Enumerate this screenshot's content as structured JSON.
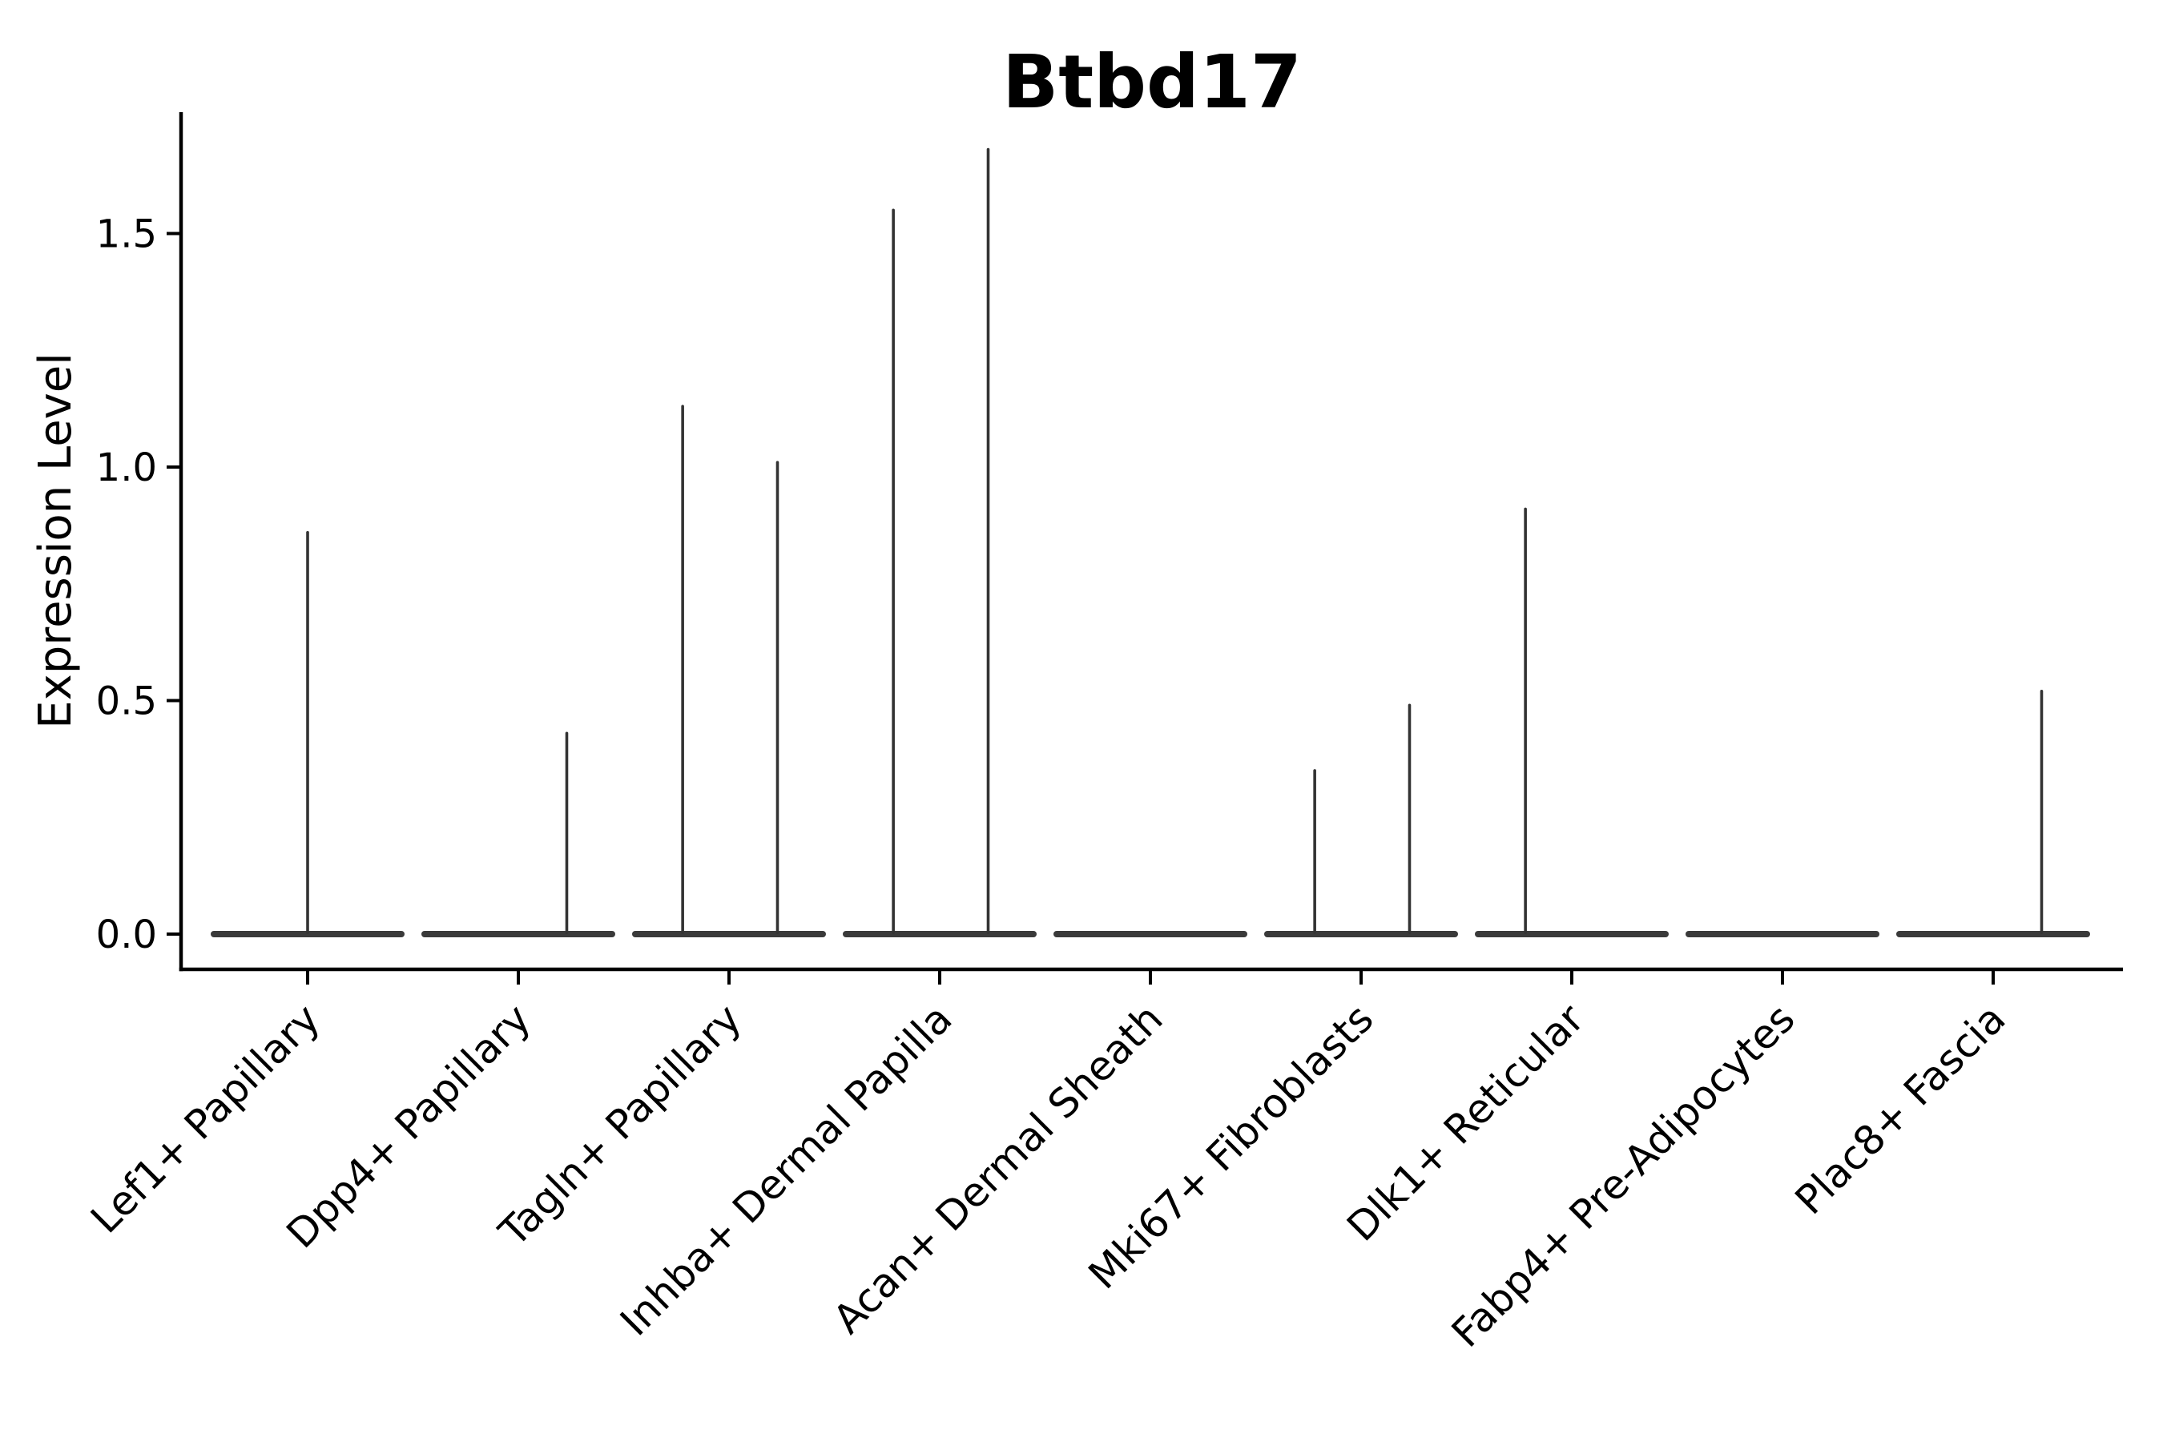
{
  "chart_data": {
    "type": "violin",
    "title": "Btbd17",
    "ylabel": "Expression Level",
    "xlabel": "",
    "ylim": [
      -0.08,
      1.76
    ],
    "yticks": [
      0.0,
      0.5,
      1.0,
      1.5
    ],
    "ytick_labels": [
      "0.0",
      "0.5",
      "1.0",
      "1.5"
    ],
    "grid": false,
    "legend": "none",
    "x_tick_rotation_deg": 45,
    "categories": [
      "Lef1+ Papillary",
      "Dpp4+ Papillary",
      "Tagln+ Papillary",
      "Inhba+ Dermal Papilla",
      "Acan+ Dermal Sheath",
      "Mki67+ Fibroblasts",
      "Dlk1+ Reticular",
      "Fabp4+ Pre-Adipocytes",
      "Plac8+ Fascia"
    ],
    "violins": [
      {
        "category": "Lef1+ Papillary",
        "baseline_value": 0.0,
        "spikes": [
          {
            "offset": 0.0,
            "max": 0.86
          }
        ]
      },
      {
        "category": "Dpp4+ Papillary",
        "baseline_value": 0.0,
        "spikes": [
          {
            "offset": 0.23,
            "max": 0.43
          }
        ]
      },
      {
        "category": "Tagln+ Papillary",
        "baseline_value": 0.0,
        "spikes": [
          {
            "offset": -0.22,
            "max": 1.13
          },
          {
            "offset": 0.23,
            "max": 1.01
          }
        ]
      },
      {
        "category": "Inhba+ Dermal Papilla",
        "baseline_value": 0.0,
        "spikes": [
          {
            "offset": -0.22,
            "max": 1.55
          },
          {
            "offset": 0.23,
            "max": 1.68
          }
        ]
      },
      {
        "category": "Acan+ Dermal Sheath",
        "baseline_value": 0.0,
        "spikes": []
      },
      {
        "category": "Mki67+ Fibroblasts",
        "baseline_value": 0.0,
        "spikes": [
          {
            "offset": -0.22,
            "max": 0.35
          },
          {
            "offset": 0.23,
            "max": 0.49
          }
        ]
      },
      {
        "category": "Dlk1+ Reticular",
        "baseline_value": 0.0,
        "spikes": [
          {
            "offset": -0.22,
            "max": 0.91
          }
        ]
      },
      {
        "category": "Fabp4+ Pre-Adipocytes",
        "baseline_value": 0.0,
        "spikes": []
      },
      {
        "category": "Plac8+ Fascia",
        "baseline_value": 0.0,
        "spikes": [
          {
            "offset": 0.23,
            "max": 0.52
          }
        ]
      }
    ]
  },
  "colors": {
    "violin_body": "#3a3a3a",
    "spike": "#333333",
    "axis": "#000000",
    "text": "#000000",
    "background": "#ffffff"
  }
}
